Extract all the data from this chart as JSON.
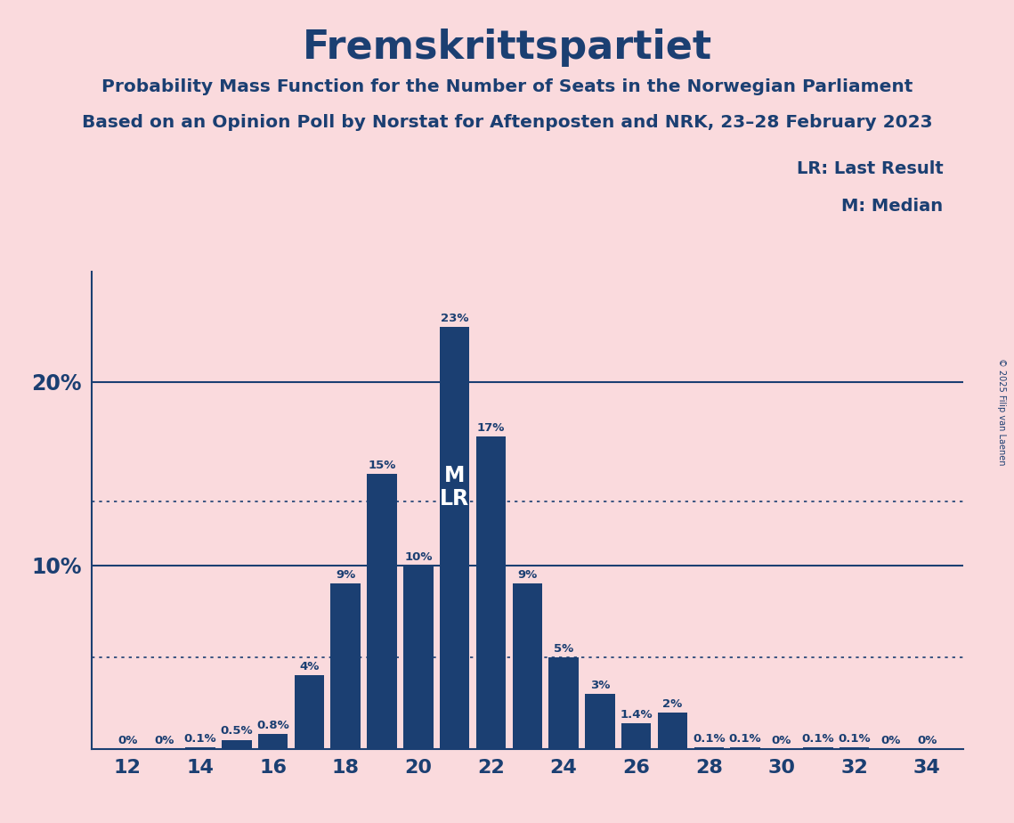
{
  "title": "Fremskrittspartiet",
  "subtitle1": "Probability Mass Function for the Number of Seats in the Norwegian Parliament",
  "subtitle2": "Based on an Opinion Poll by Norstat for Aftenposten and NRK, 23–28 February 2023",
  "copyright": "© 2025 Filip van Laenen",
  "background_color": "#FADADD",
  "bar_color": "#1B3F72",
  "title_color": "#1B3F72",
  "seats": [
    12,
    13,
    14,
    15,
    16,
    17,
    18,
    19,
    20,
    21,
    22,
    23,
    24,
    25,
    26,
    27,
    28,
    29,
    30,
    31,
    32,
    33,
    34
  ],
  "probabilities": [
    0.0,
    0.0,
    0.1,
    0.5,
    0.8,
    4.0,
    9.0,
    15.0,
    10.0,
    23.0,
    17.0,
    9.0,
    5.0,
    3.0,
    1.4,
    2.0,
    0.1,
    0.1,
    0.0,
    0.1,
    0.1,
    0.0,
    0.0
  ],
  "labels": [
    "0%",
    "0%",
    "0.1%",
    "0.5%",
    "0.8%",
    "4%",
    "9%",
    "15%",
    "10%",
    "23%",
    "17%",
    "9%",
    "5%",
    "3%",
    "1.4%",
    "2%",
    "0.1%",
    "0.1%",
    "0%",
    "0.1%",
    "0.1%",
    "0%",
    "0%"
  ],
  "median_seat": 21,
  "lr_seat": 21,
  "xlim": [
    11,
    35
  ],
  "ylim": [
    0,
    26
  ],
  "xticks": [
    12,
    14,
    16,
    18,
    20,
    22,
    24,
    26,
    28,
    30,
    32,
    34
  ],
  "dotted_lines": [
    5.0,
    13.5
  ],
  "solid_lines": [
    10.0,
    20.0
  ],
  "bar_width": 0.82
}
